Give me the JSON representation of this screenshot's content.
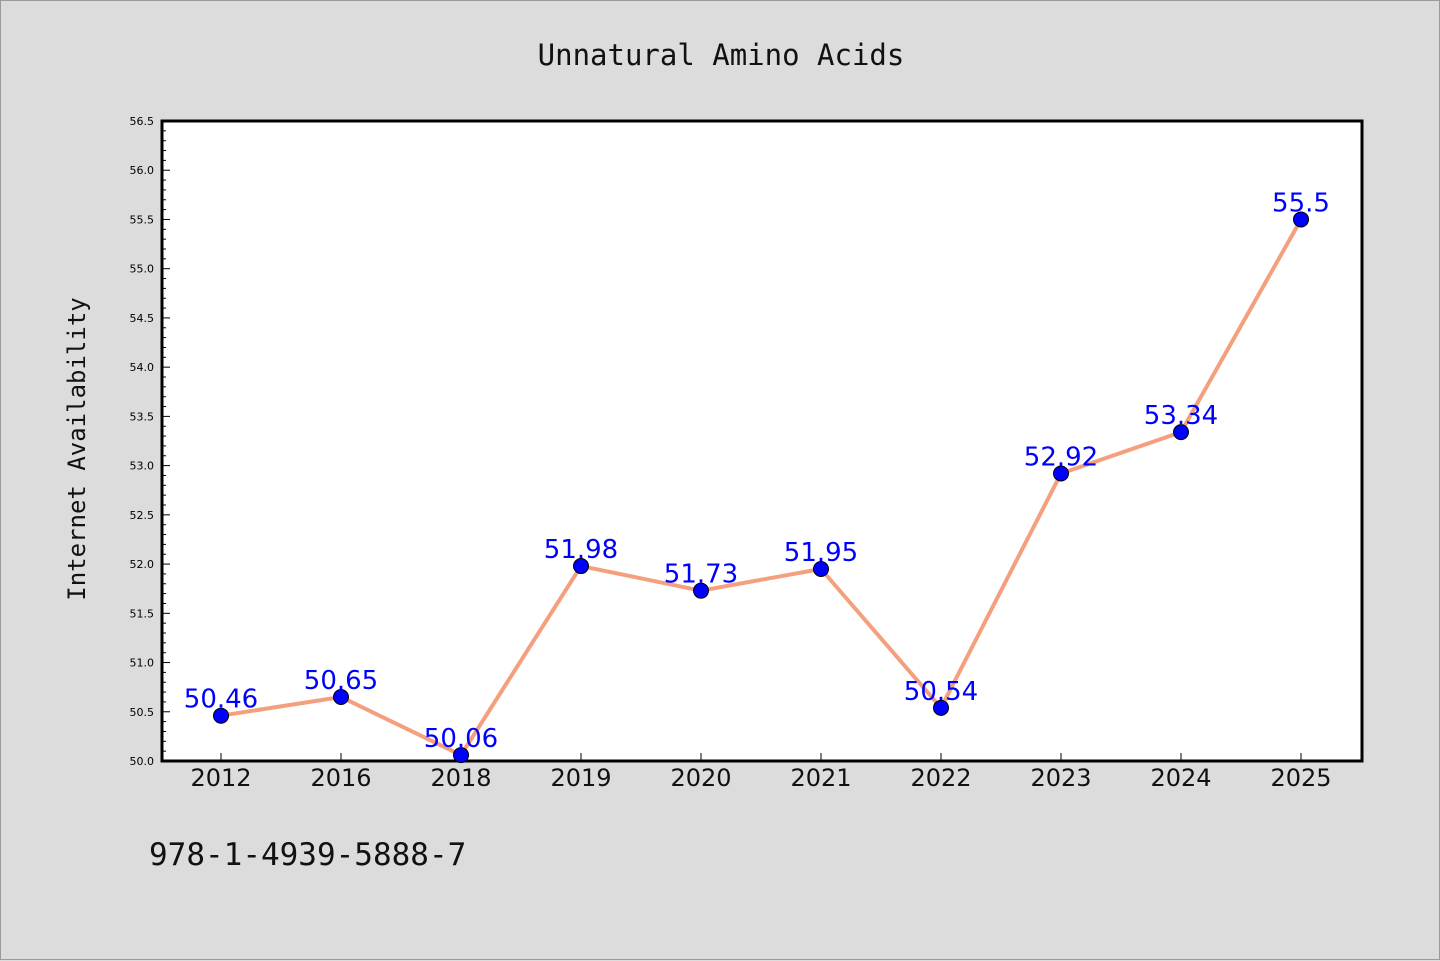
{
  "footnote": "978-1-4939-5888-7",
  "colors": {
    "background": "#dcdcdc",
    "plot_area": "#ffffff",
    "line": "#f4a07f",
    "marker": "#0000ff",
    "label": "#0000ff"
  },
  "chart_data": {
    "type": "line",
    "title": "Unnatural Amino Acids",
    "xlabel": "",
    "ylabel": "Internet Availability",
    "categories": [
      "2012",
      "2016",
      "2018",
      "2019",
      "2020",
      "2021",
      "2022",
      "2023",
      "2024",
      "2025"
    ],
    "values": [
      50.46,
      50.65,
      50.06,
      51.98,
      51.73,
      51.95,
      50.54,
      52.92,
      53.34,
      55.5
    ],
    "data_labels": [
      "50.46",
      "50.65",
      "50.06",
      "51.98",
      "51.73",
      "51.95",
      "50.54",
      "52.92",
      "53.34",
      "55.5"
    ],
    "ylim": [
      50.0,
      56.5
    ],
    "yticks": [
      "50.0",
      "50.5",
      "51.0",
      "51.5",
      "52.0",
      "52.5",
      "53.0",
      "53.5",
      "54.0",
      "54.5",
      "55.0",
      "55.5",
      "56.0",
      "56.5"
    ],
    "grid": false,
    "legend": "none"
  }
}
